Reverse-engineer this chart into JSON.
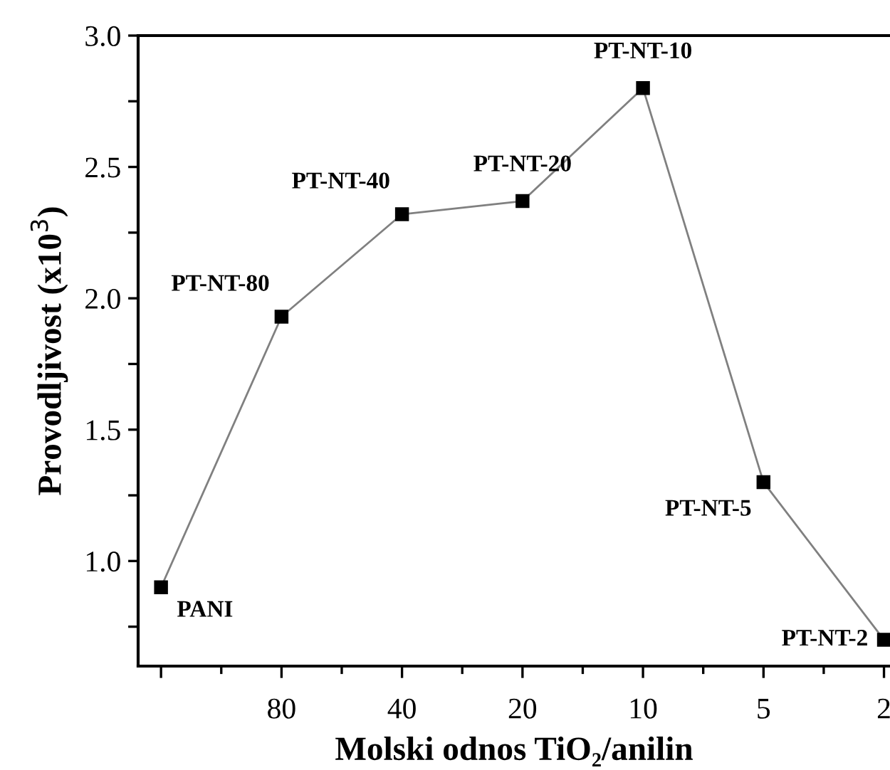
{
  "chart_data": {
    "type": "line",
    "xlabel": "Molski odnos TiO₂/anilin",
    "ylabel": "Provodljivost (x10$^{3}$)",
    "categories": [
      null,
      "80",
      "40",
      "20",
      "10",
      "5",
      "2"
    ],
    "series": [
      {
        "color": "#808080",
        "values": [
          0.9,
          1.93,
          2.32,
          2.37,
          2.8,
          1.3,
          0.7
        ]
      }
    ],
    "marker": "square",
    "ylim": [
      0.6,
      3.0
    ],
    "yticks": [
      {
        "value": 0.75,
        "label": null
      },
      {
        "value": 1.0,
        "label": "1.0"
      },
      {
        "value": 1.25,
        "label": null
      },
      {
        "value": 1.5,
        "label": "1.5"
      },
      {
        "value": 1.75,
        "label": null
      },
      {
        "value": 2.0,
        "label": "2.0"
      },
      {
        "value": 2.25,
        "label": null
      },
      {
        "value": 2.5,
        "label": "2.5"
      },
      {
        "value": 2.75,
        "label": null
      },
      {
        "value": 3.0,
        "label": "3.0"
      }
    ],
    "annotations": [
      "PANI",
      "PT-NT-80",
      "PT-NT-40",
      "PT-NT-20",
      "PT-NT-10",
      "PT-NT-5",
      "PT-NT-2"
    ],
    "grid": false
  }
}
